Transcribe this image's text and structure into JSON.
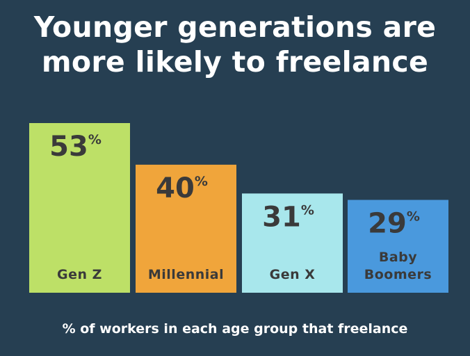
{
  "title_lines": [
    "Younger generations are",
    "more likely to freelance"
  ],
  "footer": "% of workers in each age group that freelance",
  "colors": {
    "background": "#263f52",
    "label_text": "#3a3a3a"
  },
  "chart_data": {
    "type": "bar",
    "title": "Younger generations are more likely to freelance",
    "xlabel": "% of workers in each age group that freelance",
    "ylabel": "",
    "ylim": [
      0,
      60
    ],
    "grid": false,
    "legend": "none",
    "categories": [
      "Gen Z",
      "Millennial",
      "Gen X",
      "Baby Boomers"
    ],
    "values": [
      53,
      40,
      31,
      29
    ],
    "data_labels": [
      "53%",
      "40%",
      "31%",
      "29%"
    ],
    "bar_colors": [
      "#bde067",
      "#f0a53b",
      "#a8e7ec",
      "#4a99dd"
    ]
  }
}
